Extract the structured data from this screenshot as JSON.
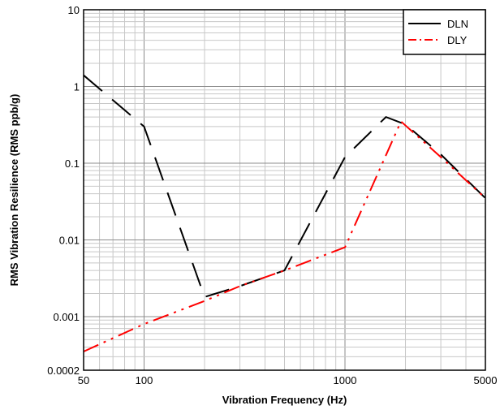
{
  "chart_data": {
    "type": "line",
    "xlabel": "Vibration Frequency (Hz)",
    "ylabel": "RMS Vibration Resilience (RMS ppb/g)",
    "xscale": "log",
    "yscale": "log",
    "xlim": [
      50,
      5000
    ],
    "ylim": [
      0.0002,
      10
    ],
    "x_tick_labels": [
      "50",
      "100",
      "1000",
      "5000"
    ],
    "x_tick_values": [
      50,
      100,
      1000,
      5000
    ],
    "y_tick_labels": [
      "10",
      "1",
      "0.1",
      "0.01",
      "0.001",
      "0.0002"
    ],
    "y_tick_values": [
      10,
      1,
      0.1,
      0.01,
      0.001,
      0.0002
    ],
    "grid": true,
    "legend_position": "top-right",
    "series": [
      {
        "name": "DLN",
        "color": "#000000",
        "style": "long-dash",
        "x": [
          50,
          100,
          200,
          300,
          500,
          1000,
          1600,
          2000,
          3000,
          5000
        ],
        "y": [
          1.4,
          0.3,
          0.0018,
          0.0025,
          0.004,
          0.12,
          0.4,
          0.32,
          0.13,
          0.035
        ]
      },
      {
        "name": "DLY",
        "color": "#ff0000",
        "style": "dash-dot-dot",
        "x": [
          50,
          100,
          200,
          300,
          500,
          1000,
          1900,
          3000,
          5000
        ],
        "y": [
          0.00035,
          0.0008,
          0.0016,
          0.0025,
          0.004,
          0.008,
          0.35,
          0.12,
          0.035
        ]
      }
    ]
  }
}
